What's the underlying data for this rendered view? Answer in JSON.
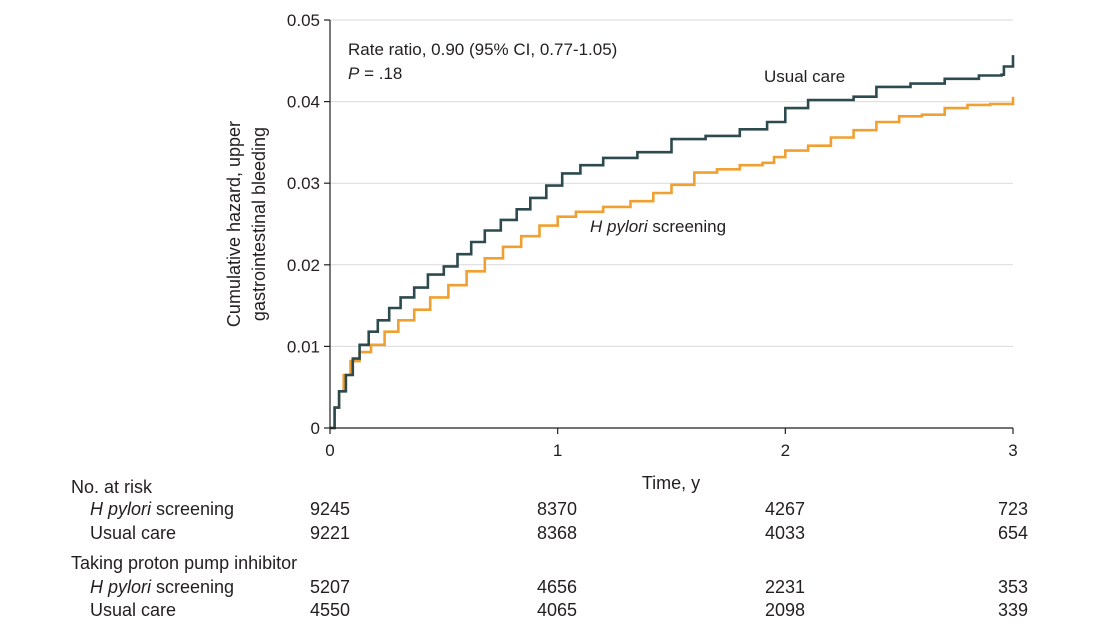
{
  "chart_data": {
    "type": "line",
    "xlabel": "Time, y",
    "ylabel": [
      "Cumulative hazard, upper",
      "gastrointestinal bleeding"
    ],
    "xlim": [
      0,
      3
    ],
    "ylim": [
      0,
      0.05
    ],
    "x_ticks": [
      "0",
      "1",
      "2",
      "3"
    ],
    "y_ticks": [
      "0",
      "0.01",
      "0.02",
      "0.03",
      "0.04",
      "0.05"
    ],
    "grid": "horizontal",
    "annotation": {
      "line1": "Rate ratio, 0.90 (95% CI, 0.77-1.05)",
      "line2_italic": "P",
      "line2_rest": " = .18"
    },
    "series": [
      {
        "name": "Usual care",
        "label_text": "Usual care",
        "color": "#2d4a4e",
        "points": [
          [
            0,
            0
          ],
          [
            0.02,
            0.0025
          ],
          [
            0.04,
            0.0045
          ],
          [
            0.07,
            0.0065
          ],
          [
            0.1,
            0.0085
          ],
          [
            0.13,
            0.0102
          ],
          [
            0.17,
            0.0118
          ],
          [
            0.21,
            0.0132
          ],
          [
            0.26,
            0.0147
          ],
          [
            0.31,
            0.016
          ],
          [
            0.37,
            0.0172
          ],
          [
            0.43,
            0.0188
          ],
          [
            0.5,
            0.0198
          ],
          [
            0.56,
            0.0213
          ],
          [
            0.62,
            0.0228
          ],
          [
            0.68,
            0.0242
          ],
          [
            0.75,
            0.0255
          ],
          [
            0.82,
            0.0268
          ],
          [
            0.88,
            0.0282
          ],
          [
            0.95,
            0.0297
          ],
          [
            1.02,
            0.0312
          ],
          [
            1.1,
            0.0322
          ],
          [
            1.2,
            0.0331
          ],
          [
            1.35,
            0.0338
          ],
          [
            1.5,
            0.0354
          ],
          [
            1.65,
            0.0358
          ],
          [
            1.8,
            0.0366
          ],
          [
            1.92,
            0.0375
          ],
          [
            2.0,
            0.0392
          ],
          [
            2.1,
            0.0402
          ],
          [
            2.3,
            0.0406
          ],
          [
            2.4,
            0.0418
          ],
          [
            2.55,
            0.0422
          ],
          [
            2.7,
            0.0428
          ],
          [
            2.85,
            0.0432
          ],
          [
            2.95,
            0.0433
          ],
          [
            2.96,
            0.0443
          ],
          [
            2.99,
            0.0443
          ],
          [
            3.0,
            0.0457
          ]
        ]
      },
      {
        "name": "H pylori screening",
        "label_text": "screening",
        "label_italic": "H pylori",
        "color": "#f0a030",
        "points": [
          [
            0,
            0
          ],
          [
            0.02,
            0.0025
          ],
          [
            0.04,
            0.0045
          ],
          [
            0.06,
            0.0065
          ],
          [
            0.09,
            0.0082
          ],
          [
            0.13,
            0.0093
          ],
          [
            0.18,
            0.0102
          ],
          [
            0.24,
            0.0118
          ],
          [
            0.3,
            0.0132
          ],
          [
            0.37,
            0.0145
          ],
          [
            0.44,
            0.016
          ],
          [
            0.52,
            0.0175
          ],
          [
            0.6,
            0.0192
          ],
          [
            0.68,
            0.0208
          ],
          [
            0.76,
            0.0222
          ],
          [
            0.84,
            0.0235
          ],
          [
            0.92,
            0.0248
          ],
          [
            1.0,
            0.0259
          ],
          [
            1.08,
            0.0265
          ],
          [
            1.2,
            0.0271
          ],
          [
            1.32,
            0.0278
          ],
          [
            1.42,
            0.0288
          ],
          [
            1.5,
            0.0298
          ],
          [
            1.6,
            0.0313
          ],
          [
            1.7,
            0.0317
          ],
          [
            1.8,
            0.0322
          ],
          [
            1.9,
            0.0325
          ],
          [
            1.95,
            0.0332
          ],
          [
            2.0,
            0.034
          ],
          [
            2.1,
            0.0346
          ],
          [
            2.2,
            0.0356
          ],
          [
            2.3,
            0.0365
          ],
          [
            2.4,
            0.0375
          ],
          [
            2.5,
            0.0382
          ],
          [
            2.6,
            0.0384
          ],
          [
            2.7,
            0.0392
          ],
          [
            2.8,
            0.0396
          ],
          [
            2.9,
            0.0397
          ],
          [
            2.99,
            0.0397
          ],
          [
            3.0,
            0.0406
          ]
        ]
      }
    ]
  },
  "risk_table": {
    "title": "No. at risk",
    "rows": [
      {
        "italic": "H pylori",
        "label": " screening",
        "values": [
          "9245",
          "8370",
          "4267",
          "723"
        ]
      },
      {
        "italic": "",
        "label": "Usual care",
        "values": [
          "9221",
          "8368",
          "4033",
          "654"
        ]
      }
    ],
    "ppi_title": "Taking proton pump inhibitor",
    "ppi_rows": [
      {
        "italic": "H pylori",
        "label": " screening",
        "values": [
          "5207",
          "4656",
          "2231",
          "353"
        ]
      },
      {
        "italic": "",
        "label": "Usual care",
        "values": [
          "4550",
          "4065",
          "2098",
          "339"
        ]
      }
    ]
  }
}
